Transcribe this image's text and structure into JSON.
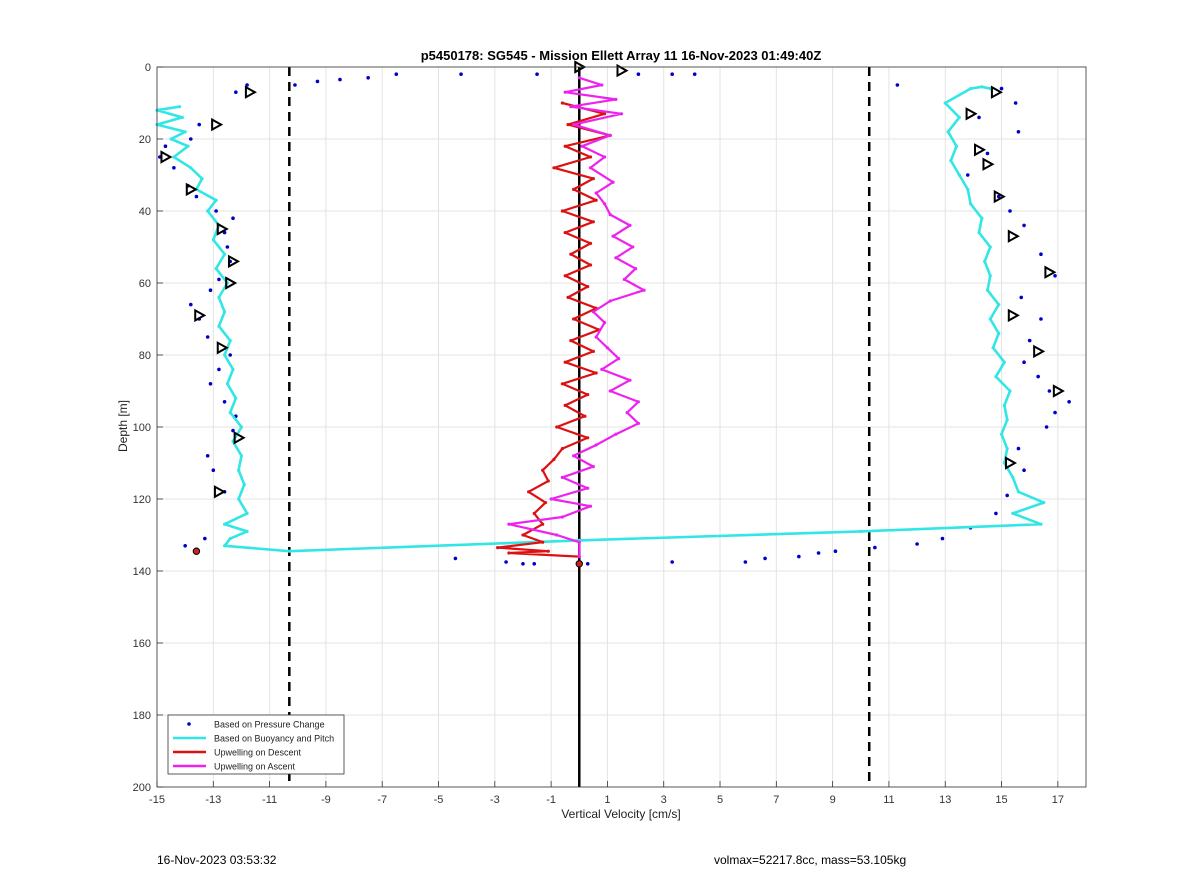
{
  "footer": {
    "timestamp": "16-Nov-2023 03:53:32",
    "vessel_info": "volmax=52217.8cc, mass=53.105kg"
  },
  "chart_data": {
    "type": "line",
    "title": "p5450178: SG545 - Mission Ellett Array 11 16-Nov-2023 01:49:40Z",
    "xlabel": "Vertical Velocity [cm/s]",
    "ylabel": "Depth [m]",
    "xlim": [
      -15,
      18
    ],
    "ylim": [
      0,
      200
    ],
    "y_reversed": true,
    "grid": true,
    "xticks": [
      -15,
      -13,
      -11,
      -9,
      -7,
      -5,
      -3,
      -1,
      1,
      3,
      5,
      7,
      9,
      11,
      13,
      15,
      17
    ],
    "yticks": [
      0,
      20,
      40,
      60,
      80,
      100,
      120,
      140,
      160,
      180,
      200
    ],
    "legend_position": "bottom-left",
    "colors": {
      "pressure": "#0000cc",
      "buoyancy": "#33e6e6",
      "descent": "#dd1111",
      "ascent": "#ee22ee",
      "reference": "#000000"
    },
    "reference_lines": [
      {
        "x": 0,
        "style": "solid"
      },
      {
        "x": -10.3,
        "style": "dashed"
      },
      {
        "x": 10.3,
        "style": "dashed"
      }
    ],
    "series": [
      {
        "name": "Based on Pressure Change",
        "style": "dots",
        "points": [
          [
            -11.8,
            5
          ],
          [
            -12.2,
            7
          ],
          [
            -10.1,
            5
          ],
          [
            -9.3,
            4
          ],
          [
            -8.5,
            3.5
          ],
          [
            -7.5,
            3
          ],
          [
            -6.5,
            2
          ],
          [
            -4.2,
            2
          ],
          [
            -1.5,
            2
          ],
          [
            2.1,
            2
          ],
          [
            3.3,
            2
          ],
          [
            4.1,
            2
          ],
          [
            -14.2,
            14
          ],
          [
            -13.5,
            16
          ],
          [
            -13.8,
            20
          ],
          [
            -14.7,
            22
          ],
          [
            -14.9,
            25
          ],
          [
            -14.4,
            28
          ],
          [
            -13.9,
            33
          ],
          [
            -13.6,
            36
          ],
          [
            -12.9,
            40
          ],
          [
            -12.3,
            42
          ],
          [
            -12.6,
            46
          ],
          [
            -12.5,
            50
          ],
          [
            -12.4,
            54
          ],
          [
            -12.8,
            59
          ],
          [
            -13.1,
            62
          ],
          [
            -13.8,
            66
          ],
          [
            -13.5,
            70
          ],
          [
            -13.2,
            75
          ],
          [
            -12.4,
            80
          ],
          [
            -12.8,
            84
          ],
          [
            -13.1,
            88
          ],
          [
            -12.6,
            93
          ],
          [
            -12.2,
            97
          ],
          [
            -12.3,
            101
          ],
          [
            -13.2,
            108
          ],
          [
            -13.0,
            112
          ],
          [
            -12.6,
            118
          ],
          [
            -13.3,
            131
          ],
          [
            -14.0,
            133
          ],
          [
            -13.6,
            134
          ],
          [
            -4.4,
            136.5
          ],
          [
            -2.6,
            137.5
          ],
          [
            -2.0,
            138
          ],
          [
            -1.6,
            138
          ],
          [
            0.3,
            138
          ],
          [
            3.3,
            137.5
          ],
          [
            5.9,
            137.5
          ],
          [
            6.6,
            136.5
          ],
          [
            7.8,
            136
          ],
          [
            8.5,
            135
          ],
          [
            9.1,
            134.5
          ],
          [
            10.5,
            133.5
          ],
          [
            11.3,
            5
          ],
          [
            15.0,
            6
          ],
          [
            15.5,
            10
          ],
          [
            14.2,
            14
          ],
          [
            15.6,
            18
          ],
          [
            14.5,
            24
          ],
          [
            13.8,
            30
          ],
          [
            14.9,
            36
          ],
          [
            15.3,
            40
          ],
          [
            15.8,
            44
          ],
          [
            16.4,
            52
          ],
          [
            16.9,
            58
          ],
          [
            15.7,
            64
          ],
          [
            16.4,
            70
          ],
          [
            16.0,
            76
          ],
          [
            15.8,
            82
          ],
          [
            16.3,
            86
          ],
          [
            16.7,
            90
          ],
          [
            17.4,
            93
          ],
          [
            16.9,
            96
          ],
          [
            16.6,
            100
          ],
          [
            15.6,
            106
          ],
          [
            15.8,
            112
          ],
          [
            15.2,
            119
          ],
          [
            14.8,
            124
          ],
          [
            13.9,
            128
          ],
          [
            12.9,
            131
          ],
          [
            12.0,
            132.5
          ]
        ]
      },
      {
        "name": "Based on Buoyancy and Pitch",
        "style": "line",
        "points": [
          [
            -14.2,
            11
          ],
          [
            -15.0,
            12
          ],
          [
            -14.1,
            14
          ],
          [
            -15.0,
            16
          ],
          [
            -14.0,
            18
          ],
          [
            -14.5,
            20
          ],
          [
            -13.9,
            22
          ],
          [
            -14.4,
            25
          ],
          [
            -13.8,
            28
          ],
          [
            -13.4,
            31
          ],
          [
            -13.6,
            34
          ],
          [
            -12.9,
            37
          ],
          [
            -13.2,
            40
          ],
          [
            -12.8,
            44
          ],
          [
            -13.0,
            48
          ],
          [
            -12.6,
            52
          ],
          [
            -12.9,
            56
          ],
          [
            -12.5,
            60
          ],
          [
            -12.8,
            64
          ],
          [
            -12.6,
            68
          ],
          [
            -12.8,
            72
          ],
          [
            -12.4,
            76
          ],
          [
            -12.6,
            80
          ],
          [
            -12.3,
            84
          ],
          [
            -12.5,
            88
          ],
          [
            -12.2,
            92
          ],
          [
            -12.4,
            96
          ],
          [
            -12.0,
            100
          ],
          [
            -12.3,
            104
          ],
          [
            -12.0,
            108
          ],
          [
            -12.1,
            112
          ],
          [
            -11.9,
            116
          ],
          [
            -12.1,
            120
          ],
          [
            -11.8,
            124
          ],
          [
            -12.6,
            127
          ],
          [
            -11.8,
            129
          ],
          [
            -12.4,
            131
          ],
          [
            -12.6,
            133
          ],
          [
            -10.3,
            134.5
          ],
          [
            0,
            131.5
          ],
          [
            10.0,
            129
          ],
          [
            16.4,
            127
          ],
          [
            15.4,
            124
          ],
          [
            16.5,
            121
          ],
          [
            15.6,
            118
          ],
          [
            15.4,
            114
          ],
          [
            15.1,
            110
          ],
          [
            15.2,
            106
          ],
          [
            15.0,
            102
          ],
          [
            15.2,
            98
          ],
          [
            15.1,
            94
          ],
          [
            15.3,
            90
          ],
          [
            14.8,
            86
          ],
          [
            15.1,
            82
          ],
          [
            14.7,
            78
          ],
          [
            14.9,
            74
          ],
          [
            14.6,
            70
          ],
          [
            14.9,
            66
          ],
          [
            14.5,
            62
          ],
          [
            14.6,
            58
          ],
          [
            14.4,
            54
          ],
          [
            14.6,
            50
          ],
          [
            14.2,
            46
          ],
          [
            14.3,
            42
          ],
          [
            13.9,
            38
          ],
          [
            13.8,
            34
          ],
          [
            13.5,
            30
          ],
          [
            13.2,
            26
          ],
          [
            13.4,
            22
          ],
          [
            13.1,
            18
          ],
          [
            13.5,
            14
          ],
          [
            13.0,
            10
          ],
          [
            13.9,
            6
          ],
          [
            14.3,
            5.5
          ],
          [
            14.6,
            6
          ]
        ]
      },
      {
        "name": "Upwelling on Descent",
        "style": "line",
        "points": [
          [
            -0.6,
            10
          ],
          [
            0.9,
            13
          ],
          [
            -0.4,
            16
          ],
          [
            1.1,
            19
          ],
          [
            -0.5,
            22
          ],
          [
            0.4,
            25
          ],
          [
            -0.9,
            28
          ],
          [
            0.5,
            31
          ],
          [
            -0.2,
            34
          ],
          [
            0.6,
            37
          ],
          [
            -0.6,
            40
          ],
          [
            0.5,
            43
          ],
          [
            -0.5,
            46
          ],
          [
            0.4,
            49
          ],
          [
            -0.3,
            52
          ],
          [
            0.4,
            55
          ],
          [
            -0.5,
            58
          ],
          [
            0.3,
            61
          ],
          [
            -0.4,
            64
          ],
          [
            0.6,
            67
          ],
          [
            -0.2,
            70
          ],
          [
            0.7,
            73
          ],
          [
            -0.3,
            76
          ],
          [
            0.5,
            79
          ],
          [
            -0.5,
            82
          ],
          [
            0.6,
            85
          ],
          [
            -0.6,
            88
          ],
          [
            0.3,
            91
          ],
          [
            -0.5,
            94
          ],
          [
            0.2,
            97
          ],
          [
            -0.8,
            100
          ],
          [
            0.3,
            103
          ],
          [
            -0.6,
            106
          ],
          [
            -0.9,
            109
          ],
          [
            -1.3,
            112
          ],
          [
            -1.1,
            115
          ],
          [
            -1.8,
            118
          ],
          [
            -1.2,
            121
          ],
          [
            -1.6,
            124
          ],
          [
            -1.3,
            127
          ],
          [
            -2.0,
            130
          ],
          [
            -1.3,
            132
          ],
          [
            -2.9,
            133.5
          ],
          [
            -1.1,
            134.5
          ],
          [
            -2.5,
            135
          ],
          [
            0,
            136
          ]
        ]
      },
      {
        "name": "Upwelling on Ascent",
        "style": "line",
        "points": [
          [
            0,
            136
          ],
          [
            0.0,
            132
          ],
          [
            -0.8,
            130
          ],
          [
            -2.5,
            127
          ],
          [
            -0.6,
            125
          ],
          [
            0.4,
            122
          ],
          [
            -1.0,
            120
          ],
          [
            0.3,
            117
          ],
          [
            -0.6,
            114
          ],
          [
            0.5,
            111
          ],
          [
            -0.2,
            108
          ],
          [
            0.6,
            105
          ],
          [
            1.3,
            102
          ],
          [
            2.1,
            99
          ],
          [
            1.7,
            96
          ],
          [
            2.1,
            93
          ],
          [
            1.1,
            90
          ],
          [
            1.8,
            87
          ],
          [
            0.8,
            84
          ],
          [
            1.4,
            81
          ],
          [
            1.0,
            78
          ],
          [
            0.6,
            75
          ],
          [
            0.9,
            71
          ],
          [
            0.5,
            68
          ],
          [
            1.1,
            65
          ],
          [
            2.3,
            62
          ],
          [
            1.6,
            59
          ],
          [
            2.0,
            56
          ],
          [
            1.3,
            53
          ],
          [
            1.9,
            50
          ],
          [
            1.2,
            47
          ],
          [
            1.8,
            44
          ],
          [
            1.1,
            41
          ],
          [
            0.9,
            38
          ],
          [
            0.6,
            35
          ],
          [
            1.2,
            32
          ],
          [
            0.4,
            28
          ],
          [
            0.9,
            25
          ],
          [
            0.1,
            22
          ],
          [
            1.1,
            19
          ],
          [
            -0.2,
            16
          ],
          [
            1.5,
            13
          ],
          [
            -0.3,
            11
          ],
          [
            1.3,
            9
          ],
          [
            -0.5,
            7
          ],
          [
            0.8,
            5
          ],
          [
            0.0,
            3
          ]
        ]
      }
    ],
    "markers": {
      "triangles": [
        [
          -11.7,
          7
        ],
        [
          -12.9,
          16
        ],
        [
          -14.7,
          25
        ],
        [
          -13.8,
          34
        ],
        [
          -12.7,
          45
        ],
        [
          -12.3,
          54
        ],
        [
          -12.4,
          60
        ],
        [
          -13.5,
          69
        ],
        [
          -12.7,
          78
        ],
        [
          -12.1,
          103
        ],
        [
          -12.8,
          118
        ],
        [
          14.8,
          7
        ],
        [
          13.9,
          13
        ],
        [
          14.2,
          23
        ],
        [
          14.5,
          27
        ],
        [
          14.9,
          36
        ],
        [
          15.4,
          47
        ],
        [
          16.7,
          57
        ],
        [
          15.4,
          69
        ],
        [
          16.3,
          79
        ],
        [
          17.0,
          90
        ],
        [
          15.3,
          110
        ],
        [
          0,
          0
        ],
        [
          1.5,
          1
        ]
      ],
      "red_dots": [
        [
          -13.6,
          134.5
        ],
        [
          0,
          138
        ]
      ]
    }
  }
}
